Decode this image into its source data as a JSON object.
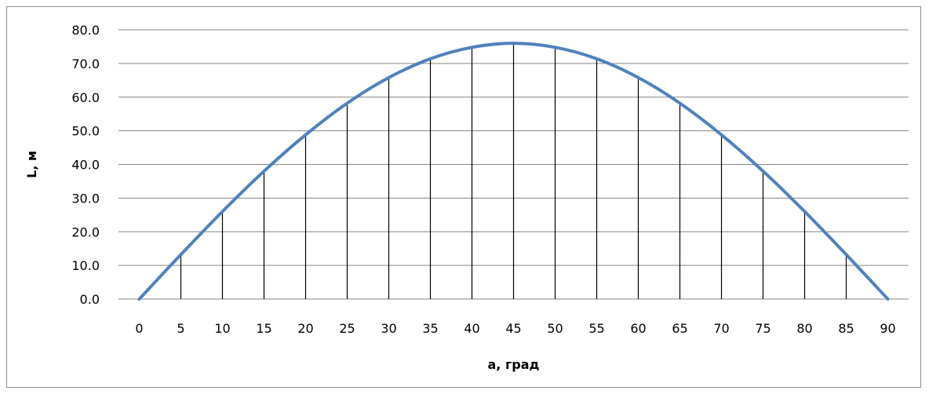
{
  "chart_data": {
    "type": "line",
    "title": "",
    "xlabel": "a, град",
    "ylabel": "L, м",
    "categories": [
      0,
      5,
      10,
      15,
      20,
      25,
      30,
      35,
      40,
      45,
      50,
      55,
      60,
      65,
      70,
      75,
      80,
      85,
      90
    ],
    "y_tick_labels": [
      "0.0",
      "10.0",
      "20.0",
      "30.0",
      "40.0",
      "50.0",
      "60.0",
      "70.0",
      "80.0"
    ],
    "ylim": [
      0,
      80
    ],
    "grid": "horizontal",
    "legend": "none",
    "series": [
      {
        "values": [
          0.0,
          13.2,
          26.0,
          38.0,
          48.8,
          58.2,
          65.8,
          71.4,
          74.8,
          76.0,
          74.8,
          71.4,
          65.8,
          58.2,
          48.8,
          38.0,
          26.0,
          13.2,
          0.0
        ],
        "color": "#4f81bd"
      }
    ],
    "drop_lines": true,
    "drop_line_color": "#000000",
    "gridline_color": "#868686"
  }
}
